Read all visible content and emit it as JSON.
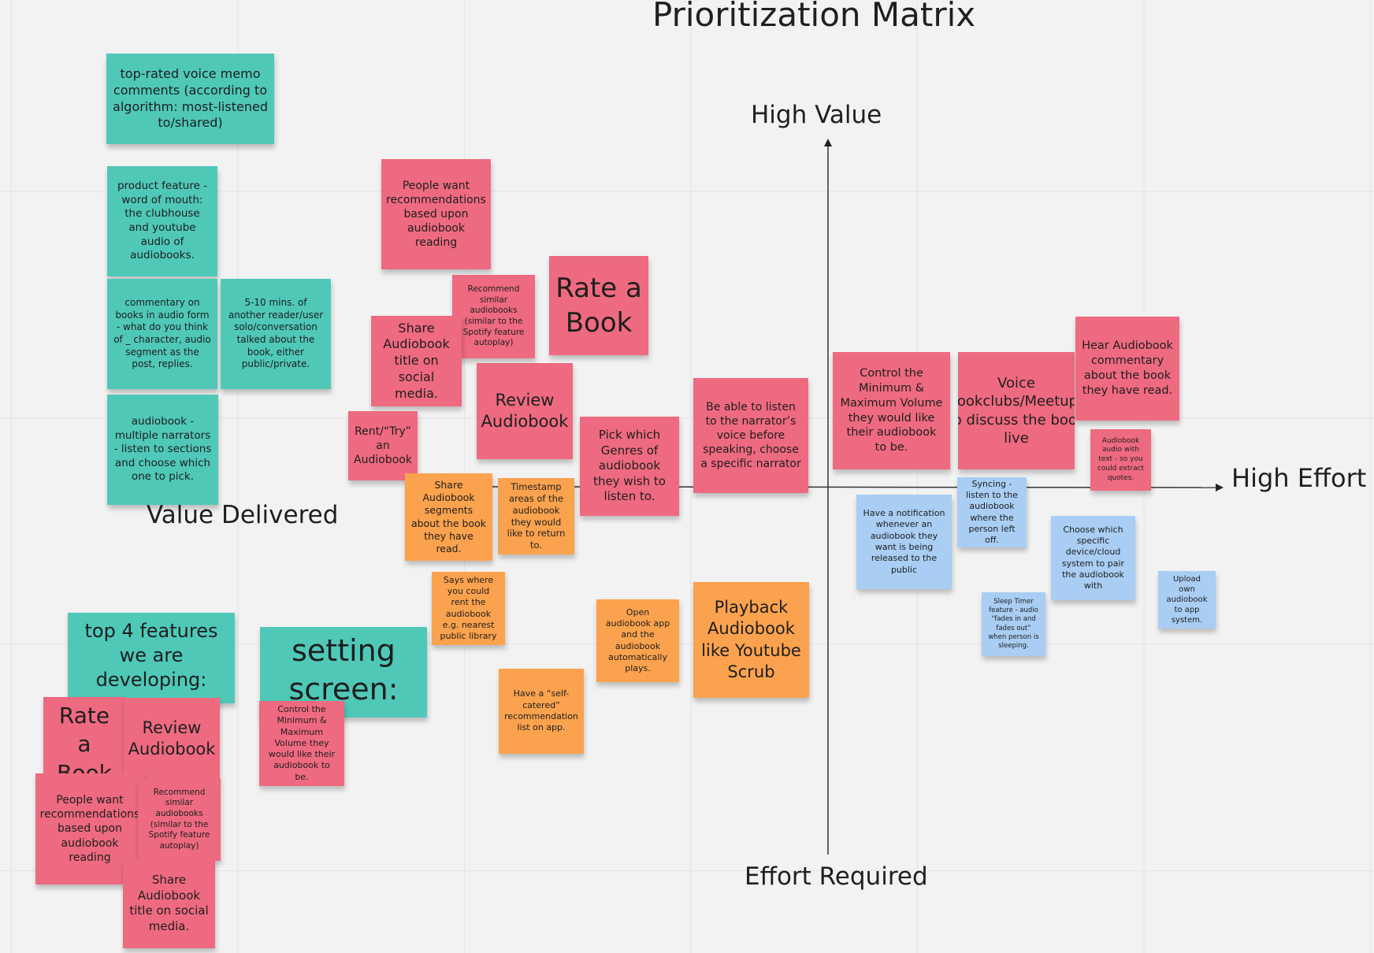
{
  "title": "Prioritization Matrix",
  "axes": {
    "top": "High Value",
    "right": "High Effort",
    "bottom": "Effort Required",
    "left": "Value Delivered"
  },
  "colors": {
    "teal": "#4fc8b8",
    "pink": "#ee6a80",
    "orange": "#fba24e",
    "blue": "#a9cdf3"
  },
  "notes": {
    "voice_memo": "top-rated voice memo comments (according to algorithm: most-listened to/shared)",
    "word_of_mouth": "product feature - word of mouth: the clubhouse and youtube audio of audiobooks.",
    "commentary_books": "commentary on books in audio form - what do you think of _ character, audio segment as the post, replies.",
    "five_ten_mins": "5-10 mins. of another reader/user solo/conversation talked about the book, either public/private.",
    "multiple_narrators": "audiobook - multiple narrators - listen to sections and choose which one to pick.",
    "top4": "top 4 features we are developing:",
    "setting_screen": "setting screen:",
    "people_want": "People want recommendations based upon audiobook reading",
    "recommend_similar": "Recommend similar audiobooks (similar to the Spotify feature autoplay)",
    "rate_book": "Rate a Book",
    "share_title": "Share Audiobook title on social media.",
    "review": "Review Audiobook",
    "rent_try": "Rent/“Try” an Audiobook",
    "pick_genres": "Pick which Genres of audiobook they wish to listen to.",
    "narrator_voice": "Be able to listen to the narrator’s voice before speaking, choose a specific narrator",
    "control_volume": "Control the Minimum & Maximum Volume they would like their audiobook to be.",
    "voice_bookclubs": "Voice Bookclubs/Meetups to discuss the book live",
    "hear_commentary": "Hear Audiobook commentary about the book they have read.",
    "audio_with_text": "Audiobook audio with text - so you could extract quotes.",
    "share_segments": "Share Audiobook segments about the book they have read.",
    "timestamp": "Timestamp areas of the audiobook they would like to return to.",
    "says_where": "Says where you could rent the audiobook e.g. nearest public library",
    "open_app": "Open audiobook app and the audiobook automatically plays.",
    "self_catered": "Have a “self-catered” recommendation list on app.",
    "playback": "Playback Audiobook like Youtube Scrub",
    "notification": "Have a notification whenever an audiobook they want is being released to the public",
    "syncing": "Syncing - listen to the audiobook where the person left off.",
    "choose_device": "Choose which specific device/cloud system to pair the audiobook with",
    "upload_own": "Upload own audiobook to app system.",
    "sleep_timer": "Sleep Timer feature - audio “fades in and fades out” when person is sleeping.",
    "bl_rate_book": "Rate a Book",
    "bl_review": "Review Audiobook",
    "bl_people_want": "People want recommendations based upon audiobook reading",
    "bl_recommend_similar": "Recommend similar audiobooks (similar to the Spotify feature autoplay)",
    "bl_share_title": "Share Audiobook title on social media.",
    "ss_control_volume": "Control the Minimum & Maximum Volume they would like their audiobook to be."
  }
}
